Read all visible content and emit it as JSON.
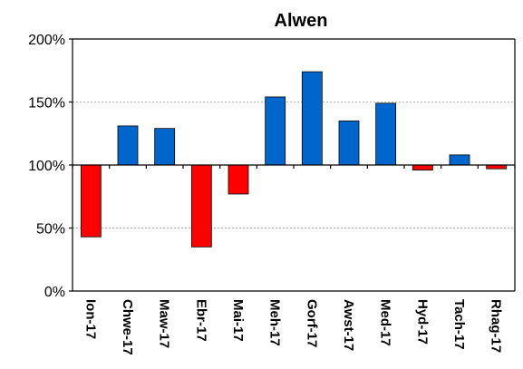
{
  "chart_data": {
    "type": "bar",
    "title": "Alwen",
    "xlabel": "",
    "ylabel": "",
    "categories": [
      "Ion-17",
      "Chwe-17",
      "Maw-17",
      "Ebr-17",
      "Mai-17",
      "Meh-17",
      "Gorf-17",
      "Awst-17",
      "Med-17",
      "Hyd-17",
      "Tach-17",
      "Rhag-17"
    ],
    "values": [
      43,
      131,
      129,
      35,
      77,
      154,
      174,
      135,
      149,
      96,
      108,
      97
    ],
    "baseline": 100,
    "unit": "%",
    "ylim": [
      0,
      200
    ],
    "yticks": [
      0,
      50,
      100,
      150,
      200
    ],
    "ytick_labels": [
      "0%",
      "50%",
      "100%",
      "150%",
      "200%"
    ],
    "grid": true,
    "colors": {
      "above": "#0066CC",
      "below": "#FF0000",
      "axis": "#000000",
      "grid": "#B0B0B0"
    }
  }
}
